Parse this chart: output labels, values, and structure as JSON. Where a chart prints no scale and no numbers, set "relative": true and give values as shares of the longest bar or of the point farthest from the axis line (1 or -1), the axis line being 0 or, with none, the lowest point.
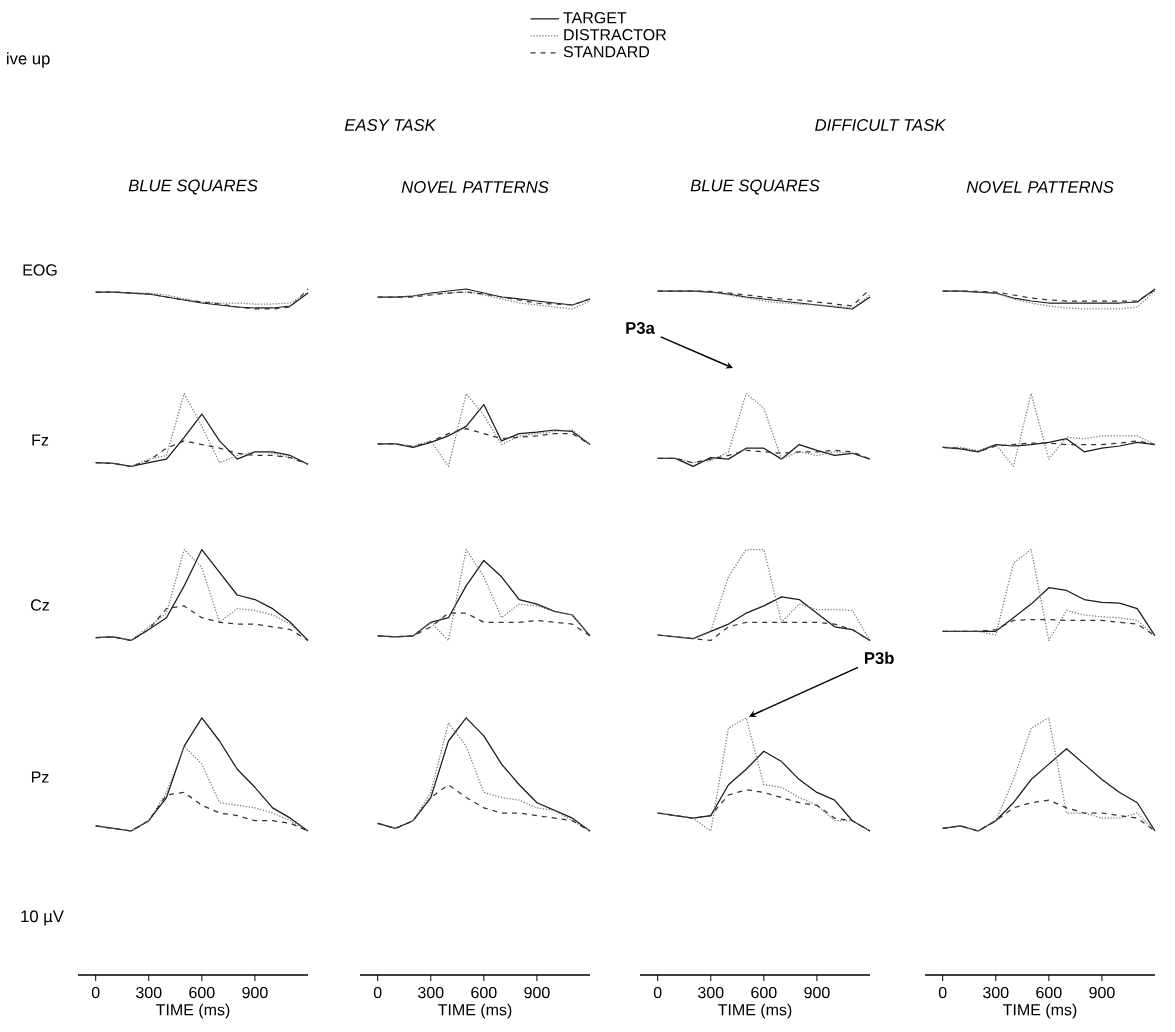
{
  "chart_data": [
    {
      "type": "line",
      "relative": true,
      "title": "BLUE SQUARES",
      "ylabel": "EOG",
      "legend": "top",
      "annotations": [
        "ive up",
        "EASY TASK"
      ],
      "tick_labels": false,
      "x": [
        0,
        100,
        200,
        300,
        400,
        500,
        600,
        700,
        800,
        900,
        1000,
        1100,
        1200
      ],
      "series": [
        {
          "name": "TARGET",
          "color": "#1a1a1a",
          "line_style": "solid",
          "values": [
            0.85,
            0.85,
            0.8,
            0.75,
            0.6,
            0.45,
            0.3,
            0.2,
            0.1,
            0.05,
            0.05,
            0.15,
            0.8
          ]
        },
        {
          "name": "DISTRACTOR",
          "color": "#777777",
          "line_style": "dotted",
          "values": [
            0.85,
            0.85,
            0.8,
            0.8,
            0.7,
            0.5,
            0.35,
            0.3,
            0.3,
            0.25,
            0.25,
            0.3,
            0.85
          ]
        },
        {
          "name": "STANDARD",
          "color": "#333333",
          "line_style": "dashed",
          "values": [
            0.85,
            0.85,
            0.8,
            0.75,
            0.6,
            0.45,
            0.35,
            0.25,
            0.1,
            0.0,
            0.0,
            0.1,
            1.0
          ]
        }
      ]
    },
    {
      "type": "line",
      "relative": true,
      "title": "NOVEL PATTERNS",
      "tick_labels": false,
      "x": [
        0,
        100,
        200,
        300,
        400,
        500,
        600,
        700,
        800,
        900,
        1000,
        1100,
        1200
      ],
      "series": [
        {
          "color": "#1a1a1a",
          "line_style": "solid",
          "values": [
            0.6,
            0.6,
            0.65,
            0.8,
            0.9,
            1.0,
            0.8,
            0.6,
            0.5,
            0.4,
            0.3,
            0.2,
            0.5
          ]
        },
        {
          "color": "#777777",
          "line_style": "dotted",
          "values": [
            0.6,
            0.6,
            0.65,
            0.75,
            0.8,
            0.85,
            0.7,
            0.5,
            0.3,
            0.2,
            0.1,
            0.0,
            0.4
          ]
        },
        {
          "color": "#333333",
          "line_style": "dashed",
          "values": [
            0.6,
            0.6,
            0.6,
            0.7,
            0.8,
            0.85,
            0.75,
            0.6,
            0.45,
            0.3,
            0.25,
            0.2,
            0.5
          ]
        }
      ]
    },
    {
      "type": "line",
      "relative": true,
      "title": "BLUE SQUARES",
      "annotations": [
        "DIFFICULT TASK"
      ],
      "tick_labels": false,
      "x": [
        0,
        100,
        200,
        300,
        400,
        500,
        600,
        700,
        800,
        900,
        1000,
        1100,
        1200
      ],
      "series": [
        {
          "color": "#1a1a1a",
          "line_style": "solid",
          "values": [
            0.9,
            0.9,
            0.9,
            0.85,
            0.75,
            0.6,
            0.5,
            0.4,
            0.3,
            0.2,
            0.1,
            0.0,
            0.6
          ]
        },
        {
          "color": "#777777",
          "line_style": "dotted",
          "values": [
            0.9,
            0.9,
            0.9,
            0.85,
            0.7,
            0.55,
            0.4,
            0.3,
            0.25,
            0.2,
            0.15,
            0.05,
            0.7
          ]
        },
        {
          "color": "#333333",
          "line_style": "dashed",
          "values": [
            0.9,
            0.9,
            0.9,
            0.88,
            0.8,
            0.7,
            0.6,
            0.5,
            0.45,
            0.35,
            0.25,
            0.15,
            1.0
          ]
        }
      ]
    },
    {
      "type": "line",
      "relative": true,
      "title": "NOVEL PATTERNS",
      "tick_labels": false,
      "x": [
        0,
        100,
        200,
        300,
        400,
        500,
        600,
        700,
        800,
        900,
        1000,
        1100,
        1200
      ],
      "series": [
        {
          "color": "#1a1a1a",
          "line_style": "solid",
          "values": [
            0.9,
            0.9,
            0.85,
            0.8,
            0.55,
            0.4,
            0.3,
            0.3,
            0.3,
            0.3,
            0.3,
            0.35,
            1.0
          ]
        },
        {
          "color": "#777777",
          "line_style": "dotted",
          "values": [
            0.9,
            0.9,
            0.85,
            0.8,
            0.5,
            0.3,
            0.15,
            0.05,
            0.0,
            0.0,
            0.0,
            0.1,
            0.9
          ]
        },
        {
          "color": "#333333",
          "line_style": "dashed",
          "values": [
            0.9,
            0.9,
            0.88,
            0.85,
            0.7,
            0.55,
            0.45,
            0.4,
            0.4,
            0.4,
            0.4,
            0.4,
            0.95
          ]
        }
      ]
    },
    {
      "type": "line",
      "relative": true,
      "ylabel": "Fz",
      "tick_labels": false,
      "x": [
        0,
        100,
        200,
        300,
        400,
        500,
        600,
        700,
        800,
        900,
        1000,
        1100,
        1200
      ],
      "series": [
        {
          "color": "#1a1a1a",
          "line_style": "solid",
          "values": [
            0.05,
            0.04,
            0.0,
            0.05,
            0.1,
            0.4,
            0.72,
            0.35,
            0.1,
            0.2,
            0.2,
            0.15,
            0.03
          ]
        },
        {
          "color": "#777777",
          "line_style": "dotted",
          "values": [
            0.05,
            0.04,
            0.0,
            0.1,
            0.15,
            1.0,
            0.55,
            0.05,
            0.15,
            0.2,
            0.18,
            0.12,
            0.03
          ]
        },
        {
          "color": "#333333",
          "line_style": "dashed",
          "values": [
            0.05,
            0.04,
            0.0,
            0.08,
            0.25,
            0.35,
            0.3,
            0.25,
            0.18,
            0.15,
            0.15,
            0.12,
            0.03
          ]
        }
      ]
    },
    {
      "type": "line",
      "relative": true,
      "tick_labels": false,
      "x": [
        0,
        100,
        200,
        300,
        400,
        500,
        600,
        700,
        800,
        900,
        1000,
        1100,
        1200
      ],
      "series": [
        {
          "color": "#1a1a1a",
          "line_style": "solid",
          "values": [
            0.31,
            0.31,
            0.26,
            0.33,
            0.42,
            0.55,
            0.85,
            0.35,
            0.45,
            0.47,
            0.5,
            0.48,
            0.3
          ]
        },
        {
          "color": "#777777",
          "line_style": "dotted",
          "values": [
            0.31,
            0.31,
            0.28,
            0.35,
            0.0,
            1.0,
            0.7,
            0.3,
            0.42,
            0.45,
            0.48,
            0.5,
            0.3
          ]
        },
        {
          "color": "#333333",
          "line_style": "dashed",
          "values": [
            0.31,
            0.31,
            0.27,
            0.34,
            0.45,
            0.52,
            0.45,
            0.38,
            0.4,
            0.42,
            0.45,
            0.45,
            0.3
          ]
        }
      ]
    },
    {
      "type": "line",
      "relative": true,
      "annotations": [
        "P3a"
      ],
      "tick_labels": false,
      "x": [
        0,
        100,
        200,
        300,
        400,
        500,
        600,
        700,
        800,
        900,
        1000,
        1100,
        1200
      ],
      "series": [
        {
          "color": "#1a1a1a",
          "line_style": "solid",
          "values": [
            0.11,
            0.11,
            0.0,
            0.12,
            0.1,
            0.25,
            0.25,
            0.1,
            0.3,
            0.22,
            0.15,
            0.18,
            0.1
          ]
        },
        {
          "color": "#777777",
          "line_style": "dotted",
          "values": [
            0.11,
            0.11,
            0.05,
            0.08,
            0.2,
            1.0,
            0.8,
            0.1,
            0.2,
            0.15,
            0.2,
            0.18,
            0.1
          ]
        },
        {
          "color": "#333333",
          "line_style": "dashed",
          "values": [
            0.11,
            0.11,
            0.05,
            0.1,
            0.15,
            0.22,
            0.2,
            0.18,
            0.2,
            0.2,
            0.22,
            0.2,
            0.1
          ]
        }
      ]
    },
    {
      "type": "line",
      "relative": true,
      "tick_labels": false,
      "x": [
        0,
        100,
        200,
        300,
        400,
        500,
        600,
        700,
        800,
        900,
        1000,
        1100,
        1200
      ],
      "series": [
        {
          "color": "#1a1a1a",
          "line_style": "solid",
          "values": [
            0.26,
            0.24,
            0.2,
            0.3,
            0.28,
            0.3,
            0.33,
            0.38,
            0.2,
            0.25,
            0.28,
            0.33,
            0.3
          ]
        },
        {
          "color": "#777777",
          "line_style": "dotted",
          "values": [
            0.26,
            0.26,
            0.22,
            0.3,
            0.0,
            1.0,
            0.1,
            0.4,
            0.38,
            0.42,
            0.42,
            0.42,
            0.3
          ]
        },
        {
          "color": "#333333",
          "line_style": "dashed",
          "values": [
            0.26,
            0.25,
            0.2,
            0.28,
            0.3,
            0.32,
            0.32,
            0.3,
            0.3,
            0.3,
            0.32,
            0.35,
            0.3
          ]
        }
      ]
    },
    {
      "type": "line",
      "relative": true,
      "ylabel": "Cz",
      "tick_labels": false,
      "x": [
        0,
        100,
        200,
        300,
        400,
        500,
        600,
        700,
        800,
        900,
        1000,
        1100,
        1200
      ],
      "series": [
        {
          "color": "#1a1a1a",
          "line_style": "solid",
          "values": [
            0.03,
            0.04,
            0.0,
            0.12,
            0.25,
            0.6,
            1.0,
            0.75,
            0.5,
            0.45,
            0.35,
            0.2,
            0.0
          ]
        },
        {
          "color": "#777777",
          "line_style": "dotted",
          "values": [
            0.03,
            0.04,
            0.0,
            0.15,
            0.3,
            1.0,
            0.8,
            0.2,
            0.35,
            0.33,
            0.28,
            0.18,
            0.0
          ]
        },
        {
          "color": "#333333",
          "line_style": "dashed",
          "values": [
            0.03,
            0.04,
            0.0,
            0.12,
            0.35,
            0.38,
            0.25,
            0.2,
            0.18,
            0.18,
            0.15,
            0.12,
            0.0
          ]
        }
      ]
    },
    {
      "type": "line",
      "relative": true,
      "tick_labels": false,
      "x": [
        0,
        100,
        200,
        300,
        400,
        500,
        600,
        700,
        800,
        900,
        1000,
        1100,
        1200
      ],
      "series": [
        {
          "color": "#1a1a1a",
          "line_style": "solid",
          "values": [
            0.05,
            0.04,
            0.05,
            0.2,
            0.25,
            0.6,
            0.88,
            0.7,
            0.45,
            0.4,
            0.32,
            0.28,
            0.05
          ]
        },
        {
          "color": "#777777",
          "line_style": "dotted",
          "values": [
            0.05,
            0.04,
            0.05,
            0.2,
            0.0,
            1.0,
            0.7,
            0.25,
            0.4,
            0.38,
            0.32,
            0.28,
            0.05
          ]
        },
        {
          "color": "#333333",
          "line_style": "dashed",
          "values": [
            0.05,
            0.04,
            0.05,
            0.15,
            0.3,
            0.3,
            0.2,
            0.2,
            0.2,
            0.22,
            0.2,
            0.18,
            0.05
          ]
        }
      ]
    },
    {
      "type": "line",
      "relative": true,
      "tick_labels": false,
      "x": [
        0,
        100,
        200,
        300,
        400,
        500,
        600,
        700,
        800,
        900,
        1000,
        1100,
        1200
      ],
      "series": [
        {
          "color": "#1a1a1a",
          "line_style": "solid",
          "values": [
            0.06,
            0.04,
            0.02,
            0.1,
            0.18,
            0.3,
            0.38,
            0.48,
            0.45,
            0.3,
            0.15,
            0.12,
            0.0
          ]
        },
        {
          "color": "#777777",
          "line_style": "dotted",
          "values": [
            0.06,
            0.04,
            0.02,
            0.1,
            0.7,
            1.0,
            1.0,
            0.2,
            0.4,
            0.34,
            0.34,
            0.33,
            0.0
          ]
        },
        {
          "color": "#333333",
          "line_style": "dashed",
          "values": [
            0.06,
            0.04,
            0.02,
            0.0,
            0.15,
            0.2,
            0.2,
            0.2,
            0.2,
            0.2,
            0.18,
            0.12,
            0.0
          ]
        }
      ]
    },
    {
      "type": "line",
      "relative": true,
      "tick_labels": false,
      "x": [
        0,
        100,
        200,
        300,
        400,
        500,
        600,
        700,
        800,
        900,
        1000,
        1100,
        1200
      ],
      "series": [
        {
          "color": "#1a1a1a",
          "line_style": "solid",
          "values": [
            0.1,
            0.1,
            0.1,
            0.1,
            0.25,
            0.4,
            0.58,
            0.55,
            0.45,
            0.42,
            0.41,
            0.35,
            0.05
          ]
        },
        {
          "color": "#777777",
          "line_style": "dotted",
          "values": [
            0.1,
            0.1,
            0.1,
            0.06,
            0.85,
            1.0,
            0.0,
            0.33,
            0.28,
            0.26,
            0.25,
            0.22,
            0.05
          ]
        },
        {
          "color": "#333333",
          "line_style": "dashed",
          "values": [
            0.1,
            0.1,
            0.1,
            0.12,
            0.22,
            0.23,
            0.23,
            0.22,
            0.22,
            0.22,
            0.2,
            0.18,
            0.05
          ]
        }
      ]
    },
    {
      "type": "line",
      "relative": true,
      "ylabel": "Pz",
      "annotations": [
        "10 µV"
      ],
      "xlim": [
        -100,
        1200
      ],
      "xticks": [
        0,
        300,
        600,
        900
      ],
      "xlabel": "TIME (ms)",
      "tick_labels": "x",
      "x": [
        0,
        100,
        200,
        300,
        400,
        500,
        600,
        700,
        800,
        900,
        1000,
        1100,
        1200
      ],
      "series": [
        {
          "color": "#1a1a1a",
          "line_style": "solid",
          "values": [
            0.58,
            0.57,
            0.56,
            0.6,
            0.69,
            0.89,
            1.0,
            0.91,
            0.8,
            0.73,
            0.65,
            0.61,
            0.56
          ]
        },
        {
          "color": "#777777",
          "line_style": "dotted",
          "values": [
            0.58,
            0.57,
            0.56,
            0.6,
            0.71,
            0.89,
            0.82,
            0.67,
            0.66,
            0.65,
            0.63,
            0.6,
            0.56
          ]
        },
        {
          "color": "#333333",
          "line_style": "dashed",
          "values": [
            0.58,
            0.57,
            0.56,
            0.6,
            0.7,
            0.71,
            0.66,
            0.63,
            0.62,
            0.6,
            0.6,
            0.59,
            0.56
          ]
        }
      ]
    },
    {
      "type": "line",
      "relative": true,
      "xlim": [
        -100,
        1200
      ],
      "xticks": [
        0,
        300,
        600,
        900
      ],
      "xlabel": "TIME (ms)",
      "tick_labels": "x",
      "x": [
        0,
        100,
        200,
        300,
        400,
        500,
        600,
        700,
        800,
        900,
        1000,
        1100,
        1200
      ],
      "series": [
        {
          "color": "#1a1a1a",
          "line_style": "solid",
          "values": [
            0.59,
            0.57,
            0.6,
            0.69,
            0.91,
            1.0,
            0.93,
            0.82,
            0.74,
            0.67,
            0.64,
            0.61,
            0.56
          ]
        },
        {
          "color": "#777777",
          "line_style": "dotted",
          "values": [
            0.59,
            0.57,
            0.6,
            0.71,
            0.98,
            0.89,
            0.71,
            0.69,
            0.68,
            0.65,
            0.64,
            0.6,
            0.56
          ]
        },
        {
          "color": "#333333",
          "line_style": "dashed",
          "values": [
            0.59,
            0.57,
            0.6,
            0.69,
            0.74,
            0.69,
            0.65,
            0.63,
            0.63,
            0.62,
            0.61,
            0.6,
            0.56
          ]
        }
      ]
    },
    {
      "type": "line",
      "relative": true,
      "annotations": [
        {
          "text": "P3b",
          "x": 500,
          "y": 1.0
        }
      ],
      "xlim": [
        -100,
        1200
      ],
      "xticks": [
        0,
        300,
        600,
        900
      ],
      "xlabel": "TIME (ms)",
      "tick_labels": "x",
      "x": [
        0,
        100,
        200,
        300,
        400,
        500,
        600,
        700,
        800,
        900,
        1000,
        1100,
        1200
      ],
      "series": [
        {
          "color": "#1a1a1a",
          "line_style": "solid",
          "values": [
            0.63,
            0.62,
            0.61,
            0.62,
            0.74,
            0.8,
            0.87,
            0.83,
            0.76,
            0.71,
            0.68,
            0.6,
            0.56
          ]
        },
        {
          "color": "#777777",
          "line_style": "dotted",
          "values": [
            0.63,
            0.62,
            0.61,
            0.56,
            0.96,
            1.0,
            0.74,
            0.73,
            0.69,
            0.66,
            0.6,
            0.6,
            0.56
          ]
        },
        {
          "color": "#333333",
          "line_style": "dashed",
          "values": [
            0.63,
            0.62,
            0.61,
            0.62,
            0.7,
            0.72,
            0.71,
            0.69,
            0.67,
            0.66,
            0.61,
            0.6,
            0.56
          ]
        }
      ]
    },
    {
      "type": "line",
      "relative": true,
      "xlim": [
        -100,
        1200
      ],
      "xticks": [
        0,
        300,
        600,
        900
      ],
      "xlabel": "TIME (ms)",
      "tick_labels": "x",
      "x": [
        0,
        100,
        200,
        300,
        400,
        500,
        600,
        700,
        800,
        900,
        1000,
        1100,
        1200
      ],
      "series": [
        {
          "color": "#1a1a1a",
          "line_style": "solid",
          "values": [
            0.57,
            0.58,
            0.56,
            0.6,
            0.67,
            0.76,
            0.82,
            0.88,
            0.82,
            0.76,
            0.71,
            0.67,
            0.56
          ]
        },
        {
          "color": "#777777",
          "line_style": "dotted",
          "values": [
            0.57,
            0.58,
            0.56,
            0.6,
            0.76,
            0.96,
            1.0,
            0.63,
            0.63,
            0.61,
            0.61,
            0.63,
            0.56
          ]
        },
        {
          "color": "#333333",
          "line_style": "dashed",
          "values": [
            0.57,
            0.58,
            0.56,
            0.6,
            0.65,
            0.67,
            0.68,
            0.65,
            0.63,
            0.63,
            0.62,
            0.61,
            0.56
          ]
        }
      ]
    }
  ]
}
